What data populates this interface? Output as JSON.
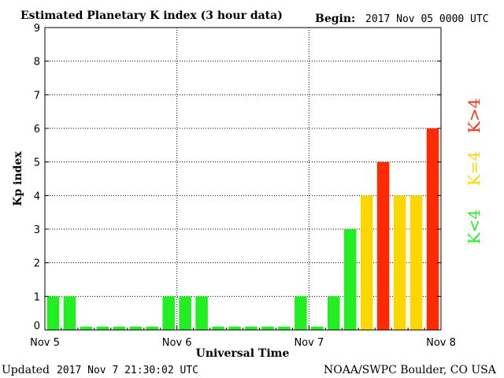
{
  "chart_data": {
    "type": "bar",
    "title": "Estimated Planetary K index (3 hour data)",
    "begin_label": "Begin:",
    "begin_value": "2017 Nov 05 0000 UTC",
    "ylabel": "Kp index",
    "xlabel": "Universal Time",
    "ylim": [
      0,
      9
    ],
    "yticks": [
      "0",
      "1",
      "2",
      "3",
      "4",
      "5",
      "6",
      "7",
      "8",
      "9"
    ],
    "xticks": [
      "Nov 5",
      "Nov 6",
      "Nov 7",
      "Nov 8"
    ],
    "grid": true,
    "values": [
      1,
      1,
      0,
      0,
      0,
      0,
      0,
      1,
      1,
      1,
      0,
      0,
      0,
      0,
      0,
      1,
      0,
      1,
      3,
      4,
      5,
      4,
      4,
      6
    ],
    "colors": {
      "below_4": "#22ee22",
      "equal_4": "#ffd700",
      "above_4": "#ff2a00"
    },
    "legend": {
      "below": "K<4",
      "equal": "K=4",
      "above": "K>4"
    }
  },
  "footer": {
    "updated_label": "Updated",
    "updated_value": "2017 Nov  7 21:30:02 UTC",
    "credit": "NOAA/SWPC Boulder, CO USA"
  }
}
